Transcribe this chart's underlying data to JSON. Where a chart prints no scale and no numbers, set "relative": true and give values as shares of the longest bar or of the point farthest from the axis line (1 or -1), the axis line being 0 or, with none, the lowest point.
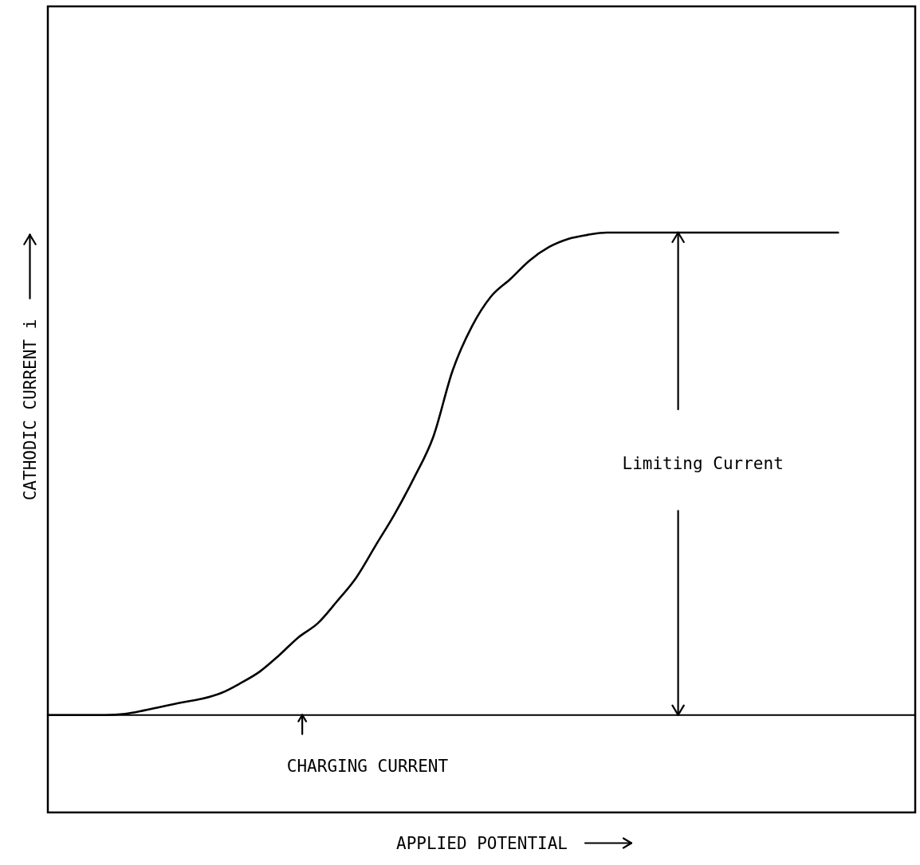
{
  "chart_data": {
    "type": "line",
    "relative": true,
    "xlabel": "APPLIED POTENTIAL",
    "ylabel": "CATHODIC CURRENT i",
    "categories": [
      null,
      null,
      null,
      null,
      null,
      null,
      null,
      null,
      null,
      null,
      null,
      null,
      null,
      null,
      null,
      null,
      null,
      null,
      null,
      null,
      null,
      null,
      null,
      null,
      null,
      null,
      null,
      null,
      null,
      null,
      null,
      null,
      null,
      null,
      null,
      null,
      null,
      null,
      null,
      null,
      null,
      null,
      null,
      null,
      null,
      null
    ],
    "series": [
      {
        "color": "#000000",
        "values": [
          0.168,
          0.168,
          0.168,
          0.168,
          0.17,
          0.176,
          0.183,
          0.19,
          0.196,
          0.206,
          0.223,
          0.243,
          0.271,
          0.302,
          0.326,
          0.364,
          0.405,
          0.46,
          0.515,
          0.577,
          0.648,
          0.762,
          0.838,
          0.89,
          0.92,
          0.952,
          0.975,
          0.989,
          0.996,
          1,
          1,
          1,
          1,
          1,
          1,
          1,
          1,
          1,
          1,
          1,
          1,
          1,
          null,
          null,
          null,
          null
        ]
      }
    ],
    "ref_lines": [
      {
        "axis": "y",
        "value": 0.168,
        "color": "#000000"
      }
    ],
    "annotations": [
      "Limiting Current",
      "CHARGING CURRENT"
    ],
    "tick_labels": false,
    "grid": false,
    "marker": "none",
    "line_style": "solid"
  }
}
